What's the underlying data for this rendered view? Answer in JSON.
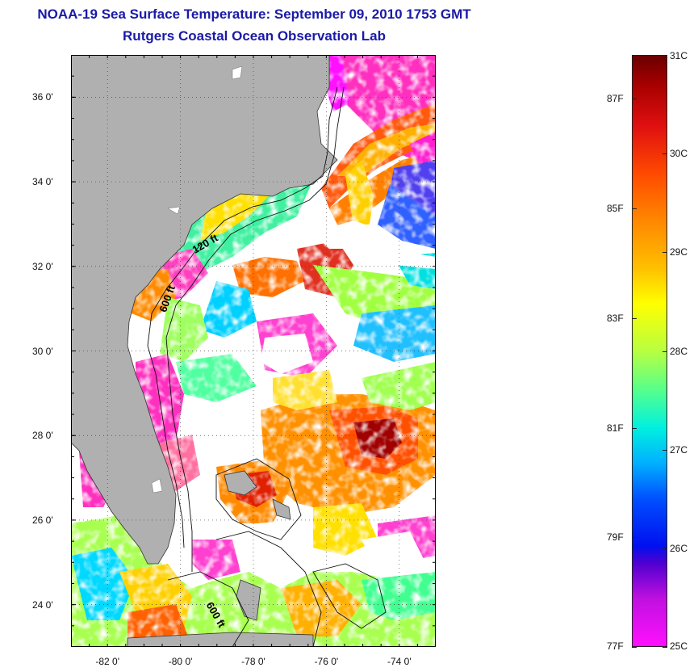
{
  "header": {
    "title": "NOAA-19 Sea Surface Temperature:  September 09, 2010 1753 GMT",
    "subtitle": "Rutgers Coastal Ocean Observation Lab"
  },
  "map": {
    "lat_range": [
      23.0,
      37.0
    ],
    "lon_range": [
      -83.0,
      -73.0
    ],
    "lat_ticks": [
      {
        "value": 36,
        "label": "36 0'"
      },
      {
        "value": 34,
        "label": "34 0'"
      },
      {
        "value": 32,
        "label": "32 0'"
      },
      {
        "value": 30,
        "label": "30 0'"
      },
      {
        "value": 28,
        "label": "28 0'"
      },
      {
        "value": 26,
        "label": "26 0'"
      },
      {
        "value": 24,
        "label": "24 0'"
      }
    ],
    "lon_ticks": [
      {
        "value": -82,
        "label": "-82 0'"
      },
      {
        "value": -80,
        "label": "-80 0'"
      },
      {
        "value": -78,
        "label": "-78 0'"
      },
      {
        "value": -76,
        "label": "-76 0'"
      },
      {
        "value": -74,
        "label": "-74 0'"
      }
    ],
    "contour_labels": [
      {
        "text": "120 ft",
        "lon": -79.6,
        "lat": 32.3,
        "rotate": -30
      },
      {
        "text": "600 ft",
        "lon": -80.4,
        "lat": 30.9,
        "rotate": -70
      },
      {
        "text": "600 ft",
        "lon": -79.3,
        "lat": 24.0,
        "rotate": 60
      }
    ],
    "land_color": "#b0b0b0",
    "grid": "dotted"
  },
  "colorbar": {
    "celsius": [
      {
        "value": 31,
        "label": "31C"
      },
      {
        "value": 30,
        "label": "30C"
      },
      {
        "value": 29,
        "label": "29C"
      },
      {
        "value": 28,
        "label": "28C"
      },
      {
        "value": 27,
        "label": "27C"
      },
      {
        "value": 26,
        "label": "26C"
      },
      {
        "value": 25,
        "label": "25C"
      }
    ],
    "fahrenheit": [
      {
        "value": 87,
        "label": "87F"
      },
      {
        "value": 85,
        "label": "85F"
      },
      {
        "value": 83,
        "label": "83F"
      },
      {
        "value": 81,
        "label": "81F"
      },
      {
        "value": 79,
        "label": "79F"
      },
      {
        "value": 77,
        "label": "77F"
      }
    ],
    "range_c": [
      25,
      31
    ]
  }
}
